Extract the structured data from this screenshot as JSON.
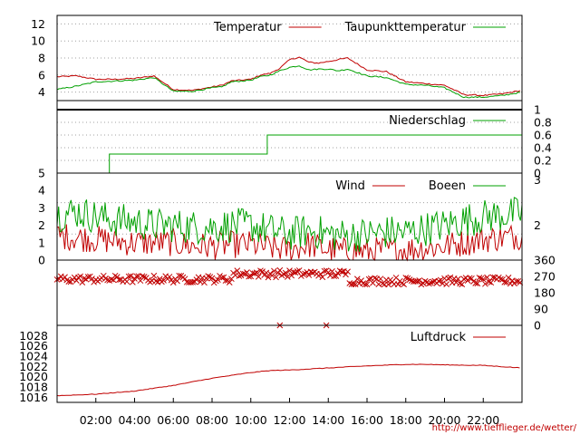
{
  "source_url": "http://www.tiefflieger.de/wetter/",
  "colors": {
    "red": "#c00000",
    "green": "#00a000",
    "grid": "#a0a0a0"
  },
  "chart_data": [
    {
      "type": "line",
      "legend_placement": "top-right",
      "grid": true,
      "ylim": [
        3,
        13
      ],
      "yticks": [
        "4",
        "6",
        "8",
        "10",
        "12"
      ],
      "series": [
        {
          "name": "Temperatur",
          "color": "#c00000",
          "x": [
            0.0,
            1.0,
            2.0,
            3.0,
            4.0,
            5.0,
            6.0,
            7.0,
            8.0,
            8.5,
            9.0,
            10.0,
            10.5,
            11.0,
            11.5,
            12.0,
            12.5,
            13.0,
            13.5,
            14.0,
            14.5,
            15.0,
            16.0,
            17.0,
            18.0,
            19.0,
            20.0,
            21.0,
            22.0,
            23.0,
            24.0
          ],
          "y": [
            5.8,
            5.9,
            5.5,
            5.5,
            5.6,
            5.9,
            4.3,
            4.2,
            4.6,
            4.8,
            5.3,
            5.5,
            6.0,
            6.2,
            6.8,
            7.8,
            8.1,
            7.5,
            7.4,
            7.6,
            7.8,
            8.0,
            6.6,
            6.4,
            5.2,
            5.0,
            4.8,
            3.7,
            3.6,
            3.8,
            4.2
          ]
        },
        {
          "name": "Taupunkttemperatur",
          "color": "#00a000",
          "x": [
            0.0,
            1.0,
            2.0,
            3.0,
            4.0,
            5.0,
            6.0,
            7.0,
            8.0,
            8.5,
            9.0,
            10.0,
            10.5,
            11.0,
            11.5,
            12.0,
            12.5,
            13.0,
            13.5,
            14.0,
            14.5,
            15.0,
            16.0,
            17.0,
            18.0,
            19.0,
            20.0,
            21.0,
            22.0,
            23.0,
            24.0
          ],
          "y": [
            4.3,
            4.7,
            5.2,
            5.3,
            5.4,
            5.7,
            4.1,
            4.1,
            4.5,
            4.6,
            5.2,
            5.4,
            5.8,
            6.0,
            6.5,
            6.9,
            7.1,
            6.6,
            6.7,
            6.7,
            6.5,
            6.7,
            5.9,
            5.7,
            4.9,
            4.8,
            4.5,
            3.4,
            3.4,
            3.6,
            4.0
          ]
        }
      ]
    },
    {
      "type": "line",
      "legend_placement": "top-right",
      "grid": true,
      "ylim": [
        0,
        1
      ],
      "yticks": [
        "0",
        "0.2",
        "0.4",
        "0.6",
        "0.8",
        "1"
      ],
      "series": [
        {
          "name": "Niederschlag",
          "color": "#00a000",
          "x": [
            0,
            2.7,
            2.7,
            10.85,
            10.85,
            24
          ],
          "y": [
            0,
            0,
            0.3,
            0.3,
            0.6,
            0.6
          ]
        }
      ]
    },
    {
      "type": "line",
      "legend_placement": "top-right",
      "grid": true,
      "ylim": [
        0,
        5
      ],
      "yticks": [
        "0",
        "1",
        "2",
        "3",
        "4",
        "5"
      ],
      "right_yticks": [
        "2",
        "3"
      ],
      "series": [
        {
          "name": "Wind",
          "color": "#c00000",
          "x": [
            0,
            1,
            2,
            3,
            4,
            5,
            6,
            7,
            8,
            9,
            10,
            11,
            12,
            13,
            14,
            15,
            16,
            17,
            18,
            19,
            20,
            21,
            22,
            23,
            24
          ],
          "y": [
            1.4,
            1.3,
            1.2,
            1.1,
            1.0,
            1.0,
            1.0,
            0.8,
            0.8,
            0.9,
            0.9,
            0.7,
            0.6,
            0.9,
            0.6,
            0.5,
            0.5,
            0.6,
            0.6,
            0.7,
            0.8,
            1.0,
            1.2,
            1.3,
            1.4
          ]
        },
        {
          "name": "Boeen",
          "color": "#00a000",
          "x": [
            0,
            1,
            2,
            3,
            4,
            5,
            6,
            7,
            8,
            9,
            10,
            11,
            12,
            13,
            14,
            15,
            16,
            17,
            18,
            19,
            20,
            21,
            22,
            23,
            24
          ],
          "y": [
            2.6,
            2.8,
            2.5,
            2.3,
            2.2,
            2.0,
            2.0,
            1.9,
            1.9,
            2.0,
            2.0,
            1.7,
            1.5,
            1.7,
            1.5,
            1.4,
            1.5,
            1.6,
            1.6,
            1.8,
            2.0,
            2.3,
            2.5,
            2.6,
            2.7
          ]
        }
      ]
    },
    {
      "type": "scatter",
      "ylim": [
        0,
        360
      ],
      "yticks": [
        "0",
        "90",
        "180",
        "270",
        "360"
      ],
      "typical_direction_deg": [
        {
          "from_h": 0,
          "to_h": 9,
          "deg": 255
        },
        {
          "from_h": 9,
          "to_h": 15,
          "deg": 285
        },
        {
          "from_h": 15,
          "to_h": 24,
          "deg": 245
        }
      ],
      "outliers": [
        {
          "x": 11.5,
          "y": 0
        },
        {
          "x": 13.9,
          "y": 0
        }
      ]
    },
    {
      "type": "line",
      "legend_placement": "top-right",
      "grid": false,
      "ylim": [
        1015,
        1030
      ],
      "yticks": [
        "1016",
        "1018",
        "1020",
        "1022",
        "1024",
        "1026",
        "1028"
      ],
      "series": [
        {
          "name": "Luftdruck",
          "color": "#c00000",
          "x": [
            0,
            2,
            4,
            6,
            8,
            10,
            11,
            12,
            14,
            16,
            18,
            19,
            20,
            22,
            24
          ],
          "y": [
            1016.3,
            1016.6,
            1017.2,
            1018.3,
            1019.7,
            1020.8,
            1021.2,
            1021.3,
            1021.7,
            1022.1,
            1022.4,
            1022.4,
            1022.3,
            1022.2,
            1021.7
          ]
        }
      ]
    }
  ],
  "x_axis": {
    "range_h": [
      0,
      24
    ],
    "tick_hours": [
      2,
      4,
      6,
      8,
      10,
      12,
      14,
      16,
      18,
      20,
      22
    ],
    "tick_labels": [
      "02:00",
      "04:00",
      "06:00",
      "08:00",
      "10:00",
      "12:00",
      "14:00",
      "16:00",
      "18:00",
      "20:00",
      "22:00"
    ]
  }
}
